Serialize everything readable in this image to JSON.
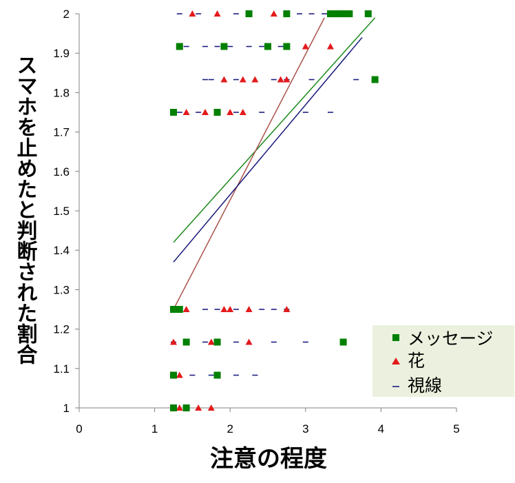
{
  "chart_data": {
    "type": "scatter",
    "title": "",
    "xlabel": "注意の程度",
    "ylabel": "スマホを止めたと判断された割合",
    "xlim": [
      0,
      5
    ],
    "ylim": [
      1,
      2
    ],
    "x_ticks": [
      "0",
      "1",
      "2",
      "3",
      "4",
      "5"
    ],
    "y_ticks": [
      "1",
      "1.1",
      "1.2",
      "1.3",
      "1.4",
      "1.5",
      "1.6",
      "1.7",
      "1.8",
      "1.9",
      "2"
    ],
    "grid": false,
    "legend_position": "bottom-right",
    "colors": {
      "message": "#008000",
      "flower": "#e31a1c",
      "gaze": "#1c1c80",
      "trend_message": "#1a8a1a",
      "trend_flower": "#a8524a",
      "trend_gaze": "#14147a",
      "legend_bg": "#ebf1de"
    },
    "series": [
      {
        "name": "メッセージ",
        "marker": "square",
        "points": [
          [
            1.25,
            1.0
          ],
          [
            1.42,
            1.0
          ],
          [
            1.25,
            1.083
          ],
          [
            1.83,
            1.083
          ],
          [
            1.42,
            1.167
          ],
          [
            1.83,
            1.167
          ],
          [
            3.5,
            1.167
          ],
          [
            1.25,
            1.25
          ],
          [
            1.33,
            1.25
          ],
          [
            1.25,
            1.75
          ],
          [
            1.83,
            1.75
          ],
          [
            3.92,
            1.833
          ],
          [
            1.33,
            1.917
          ],
          [
            1.92,
            1.917
          ],
          [
            2.5,
            1.917
          ],
          [
            2.75,
            1.917
          ],
          [
            2.25,
            2.0
          ],
          [
            2.75,
            2.0
          ],
          [
            3.33,
            2.0
          ],
          [
            3.42,
            2.0
          ],
          [
            3.5,
            2.0
          ],
          [
            3.58,
            2.0
          ],
          [
            3.83,
            2.0
          ]
        ]
      },
      {
        "name": "花",
        "marker": "triangle",
        "points": [
          [
            1.25,
            1.0
          ],
          [
            1.33,
            1.0
          ],
          [
            1.58,
            1.0
          ],
          [
            1.75,
            1.0
          ],
          [
            1.25,
            1.083
          ],
          [
            1.33,
            1.083
          ],
          [
            1.25,
            1.167
          ],
          [
            1.42,
            1.167
          ],
          [
            1.75,
            1.167
          ],
          [
            2.25,
            1.167
          ],
          [
            1.42,
            1.25
          ],
          [
            1.92,
            1.25
          ],
          [
            2.0,
            1.25
          ],
          [
            2.25,
            1.25
          ],
          [
            2.75,
            1.25
          ],
          [
            1.25,
            1.75
          ],
          [
            1.42,
            1.75
          ],
          [
            1.67,
            1.75
          ],
          [
            2.0,
            1.75
          ],
          [
            2.17,
            1.75
          ],
          [
            1.92,
            1.833
          ],
          [
            2.17,
            1.833
          ],
          [
            2.33,
            1.833
          ],
          [
            2.67,
            1.833
          ],
          [
            2.75,
            1.833
          ],
          [
            2.5,
            1.917
          ],
          [
            3.0,
            1.917
          ],
          [
            3.33,
            1.917
          ],
          [
            1.5,
            2.0
          ],
          [
            1.83,
            2.0
          ],
          [
            2.58,
            2.0
          ],
          [
            3.42,
            2.0
          ]
        ]
      },
      {
        "name": "視線",
        "marker": "dash",
        "points": [
          [
            1.25,
            1.0
          ],
          [
            1.42,
            1.0
          ],
          [
            1.25,
            1.083
          ],
          [
            1.5,
            1.083
          ],
          [
            1.75,
            1.083
          ],
          [
            2.08,
            1.083
          ],
          [
            2.33,
            1.083
          ],
          [
            1.25,
            1.167
          ],
          [
            1.42,
            1.167
          ],
          [
            1.67,
            1.167
          ],
          [
            1.83,
            1.167
          ],
          [
            2.08,
            1.167
          ],
          [
            2.58,
            1.167
          ],
          [
            3.0,
            1.167
          ],
          [
            1.67,
            1.25
          ],
          [
            1.83,
            1.25
          ],
          [
            2.08,
            1.25
          ],
          [
            2.42,
            1.25
          ],
          [
            2.58,
            1.25
          ],
          [
            2.75,
            1.25
          ],
          [
            1.33,
            1.75
          ],
          [
            1.58,
            1.75
          ],
          [
            1.83,
            1.75
          ],
          [
            2.08,
            1.75
          ],
          [
            2.42,
            1.75
          ],
          [
            3.0,
            1.75
          ],
          [
            3.33,
            1.75
          ],
          [
            1.67,
            1.833
          ],
          [
            1.75,
            1.833
          ],
          [
            2.08,
            1.833
          ],
          [
            2.58,
            1.833
          ],
          [
            2.75,
            1.833
          ],
          [
            3.08,
            1.833
          ],
          [
            3.67,
            1.833
          ],
          [
            1.42,
            1.917
          ],
          [
            1.67,
            1.917
          ],
          [
            1.83,
            1.917
          ],
          [
            2.0,
            1.917
          ],
          [
            2.25,
            1.917
          ],
          [
            2.42,
            1.917
          ],
          [
            2.67,
            1.917
          ],
          [
            1.33,
            2.0
          ],
          [
            1.58,
            2.0
          ],
          [
            2.08,
            2.0
          ],
          [
            2.92,
            2.0
          ],
          [
            3.08,
            2.0
          ],
          [
            3.25,
            2.0
          ]
        ]
      }
    ],
    "trendlines": [
      {
        "series": "メッセージ",
        "from": [
          1.25,
          1.42
        ],
        "to": [
          3.92,
          1.99
        ]
      },
      {
        "series": "花",
        "from": [
          1.25,
          1.25
        ],
        "to": [
          3.25,
          1.99
        ]
      },
      {
        "series": "視線",
        "from": [
          1.25,
          1.37
        ],
        "to": [
          3.75,
          1.94
        ]
      }
    ]
  }
}
